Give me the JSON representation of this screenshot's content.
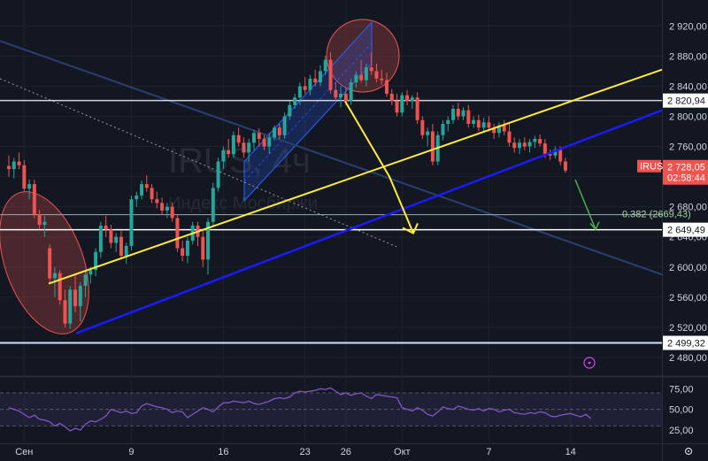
{
  "chart_data": [
    {
      "type": "candlestick",
      "title": "",
      "watermark": {
        "symbol": "IRUS, 4ч",
        "exchange": "Индекс Мосбиржи"
      },
      "ylim": [
        2460,
        2945
      ],
      "y_ticks": [
        "2 920,00",
        "2 880,00",
        "2 840,00",
        "2 800,00",
        "2 760,00",
        "2 720,00",
        "2 680,00",
        "2 640,00",
        "2 600,00",
        "2 560,00",
        "2 520,00",
        "2 480,00"
      ],
      "y_tick_values": [
        2920,
        2880,
        2840,
        2800,
        2760,
        2720,
        2680,
        2640,
        2600,
        2560,
        2520,
        2480
      ],
      "x_ticks": [
        "Сен",
        "9",
        "16",
        "23",
        "26",
        "Окт",
        "7",
        "14"
      ],
      "x_tick_bars": [
        3,
        24,
        42,
        58,
        66,
        77,
        94,
        110
      ],
      "bar_count": 115,
      "series": [
        {
          "values": [
            {
              "o": 2734,
              "h": 2748,
              "l": 2720,
              "c": 2730
            },
            {
              "o": 2730,
              "h": 2745,
              "l": 2718,
              "c": 2740
            },
            {
              "o": 2740,
              "h": 2752,
              "l": 2730,
              "c": 2735
            },
            {
              "o": 2735,
              "h": 2742,
              "l": 2700,
              "c": 2704
            },
            {
              "o": 2704,
              "h": 2716,
              "l": 2690,
              "c": 2710
            },
            {
              "o": 2710,
              "h": 2716,
              "l": 2665,
              "c": 2670
            },
            {
              "o": 2670,
              "h": 2676,
              "l": 2650,
              "c": 2656
            },
            {
              "o": 2656,
              "h": 2668,
              "l": 2640,
              "c": 2660
            },
            {
              "o": 2625,
              "h": 2630,
              "l": 2580,
              "c": 2585
            },
            {
              "o": 2585,
              "h": 2600,
              "l": 2560,
              "c": 2592
            },
            {
              "o": 2592,
              "h": 2596,
              "l": 2550,
              "c": 2556
            },
            {
              "o": 2556,
              "h": 2570,
              "l": 2520,
              "c": 2525
            },
            {
              "o": 2525,
              "h": 2575,
              "l": 2518,
              "c": 2570
            },
            {
              "o": 2570,
              "h": 2590,
              "l": 2540,
              "c": 2548
            },
            {
              "o": 2548,
              "h": 2580,
              "l": 2528,
              "c": 2575
            },
            {
              "o": 2575,
              "h": 2595,
              "l": 2560,
              "c": 2590
            },
            {
              "o": 2590,
              "h": 2600,
              "l": 2578,
              "c": 2596
            },
            {
              "o": 2596,
              "h": 2625,
              "l": 2588,
              "c": 2620
            },
            {
              "o": 2620,
              "h": 2660,
              "l": 2612,
              "c": 2655
            },
            {
              "o": 2655,
              "h": 2668,
              "l": 2640,
              "c": 2650
            },
            {
              "o": 2650,
              "h": 2656,
              "l": 2625,
              "c": 2632
            },
            {
              "o": 2632,
              "h": 2645,
              "l": 2620,
              "c": 2640
            },
            {
              "o": 2640,
              "h": 2648,
              "l": 2610,
              "c": 2615
            },
            {
              "o": 2615,
              "h": 2632,
              "l": 2604,
              "c": 2628
            },
            {
              "o": 2628,
              "h": 2695,
              "l": 2622,
              "c": 2690
            },
            {
              "o": 2690,
              "h": 2700,
              "l": 2680,
              "c": 2695
            },
            {
              "o": 2695,
              "h": 2715,
              "l": 2690,
              "c": 2710
            },
            {
              "o": 2710,
              "h": 2722,
              "l": 2700,
              "c": 2705
            },
            {
              "o": 2705,
              "h": 2710,
              "l": 2685,
              "c": 2690
            },
            {
              "o": 2690,
              "h": 2700,
              "l": 2678,
              "c": 2685
            },
            {
              "o": 2685,
              "h": 2692,
              "l": 2670,
              "c": 2675
            },
            {
              "o": 2675,
              "h": 2685,
              "l": 2665,
              "c": 2680
            },
            {
              "o": 2680,
              "h": 2686,
              "l": 2660,
              "c": 2665
            },
            {
              "o": 2665,
              "h": 2670,
              "l": 2620,
              "c": 2625
            },
            {
              "o": 2625,
              "h": 2635,
              "l": 2608,
              "c": 2615
            },
            {
              "o": 2615,
              "h": 2640,
              "l": 2605,
              "c": 2635
            },
            {
              "o": 2635,
              "h": 2660,
              "l": 2630,
              "c": 2655
            },
            {
              "o": 2655,
              "h": 2660,
              "l": 2628,
              "c": 2640
            },
            {
              "o": 2640,
              "h": 2650,
              "l": 2600,
              "c": 2610
            },
            {
              "o": 2610,
              "h": 2665,
              "l": 2590,
              "c": 2660
            },
            {
              "o": 2660,
              "h": 2712,
              "l": 2655,
              "c": 2705
            },
            {
              "o": 2705,
              "h": 2745,
              "l": 2700,
              "c": 2740
            },
            {
              "o": 2740,
              "h": 2760,
              "l": 2730,
              "c": 2755
            },
            {
              "o": 2755,
              "h": 2770,
              "l": 2745,
              "c": 2750
            },
            {
              "o": 2750,
              "h": 2780,
              "l": 2745,
              "c": 2775
            },
            {
              "o": 2775,
              "h": 2785,
              "l": 2760,
              "c": 2765
            },
            {
              "o": 2765,
              "h": 2772,
              "l": 2745,
              "c": 2752
            },
            {
              "o": 2752,
              "h": 2770,
              "l": 2740,
              "c": 2765
            },
            {
              "o": 2765,
              "h": 2782,
              "l": 2755,
              "c": 2778
            },
            {
              "o": 2778,
              "h": 2784,
              "l": 2760,
              "c": 2770
            },
            {
              "o": 2770,
              "h": 2775,
              "l": 2755,
              "c": 2760
            },
            {
              "o": 2760,
              "h": 2778,
              "l": 2750,
              "c": 2772
            },
            {
              "o": 2772,
              "h": 2788,
              "l": 2768,
              "c": 2785
            },
            {
              "o": 2785,
              "h": 2790,
              "l": 2770,
              "c": 2775
            },
            {
              "o": 2775,
              "h": 2805,
              "l": 2770,
              "c": 2800
            },
            {
              "o": 2800,
              "h": 2820,
              "l": 2795,
              "c": 2815
            },
            {
              "o": 2815,
              "h": 2830,
              "l": 2810,
              "c": 2825
            },
            {
              "o": 2825,
              "h": 2845,
              "l": 2815,
              "c": 2840
            },
            {
              "o": 2840,
              "h": 2852,
              "l": 2830,
              "c": 2835
            },
            {
              "o": 2835,
              "h": 2855,
              "l": 2828,
              "c": 2850
            },
            {
              "o": 2850,
              "h": 2862,
              "l": 2840,
              "c": 2845
            },
            {
              "o": 2845,
              "h": 2868,
              "l": 2840,
              "c": 2860
            },
            {
              "o": 2860,
              "h": 2880,
              "l": 2855,
              "c": 2875
            },
            {
              "o": 2875,
              "h": 2885,
              "l": 2830,
              "c": 2835
            },
            {
              "o": 2835,
              "h": 2845,
              "l": 2820,
              "c": 2825
            },
            {
              "o": 2825,
              "h": 2840,
              "l": 2812,
              "c": 2830
            },
            {
              "o": 2830,
              "h": 2838,
              "l": 2815,
              "c": 2820
            },
            {
              "o": 2820,
              "h": 2850,
              "l": 2815,
              "c": 2845
            },
            {
              "o": 2845,
              "h": 2860,
              "l": 2838,
              "c": 2855
            },
            {
              "o": 2855,
              "h": 2875,
              "l": 2845,
              "c": 2848
            },
            {
              "o": 2848,
              "h": 2870,
              "l": 2840,
              "c": 2865
            },
            {
              "o": 2865,
              "h": 2885,
              "l": 2855,
              "c": 2860
            },
            {
              "o": 2860,
              "h": 2870,
              "l": 2845,
              "c": 2850
            },
            {
              "o": 2850,
              "h": 2862,
              "l": 2842,
              "c": 2848
            },
            {
              "o": 2848,
              "h": 2858,
              "l": 2826,
              "c": 2830
            },
            {
              "o": 2830,
              "h": 2836,
              "l": 2815,
              "c": 2820
            },
            {
              "o": 2820,
              "h": 2830,
              "l": 2800,
              "c": 2805
            },
            {
              "o": 2805,
              "h": 2832,
              "l": 2800,
              "c": 2828
            },
            {
              "o": 2828,
              "h": 2835,
              "l": 2815,
              "c": 2820
            },
            {
              "o": 2820,
              "h": 2828,
              "l": 2810,
              "c": 2825
            },
            {
              "o": 2825,
              "h": 2832,
              "l": 2790,
              "c": 2795
            },
            {
              "o": 2795,
              "h": 2800,
              "l": 2770,
              "c": 2775
            },
            {
              "o": 2775,
              "h": 2785,
              "l": 2760,
              "c": 2780
            },
            {
              "o": 2780,
              "h": 2790,
              "l": 2735,
              "c": 2740
            },
            {
              "o": 2740,
              "h": 2780,
              "l": 2735,
              "c": 2775
            },
            {
              "o": 2775,
              "h": 2795,
              "l": 2768,
              "c": 2790
            },
            {
              "o": 2790,
              "h": 2800,
              "l": 2780,
              "c": 2795
            },
            {
              "o": 2795,
              "h": 2815,
              "l": 2790,
              "c": 2810
            },
            {
              "o": 2810,
              "h": 2818,
              "l": 2795,
              "c": 2800
            },
            {
              "o": 2800,
              "h": 2812,
              "l": 2795,
              "c": 2808
            },
            {
              "o": 2808,
              "h": 2815,
              "l": 2785,
              "c": 2790
            },
            {
              "o": 2790,
              "h": 2800,
              "l": 2785,
              "c": 2795
            },
            {
              "o": 2795,
              "h": 2802,
              "l": 2780,
              "c": 2785
            },
            {
              "o": 2785,
              "h": 2798,
              "l": 2780,
              "c": 2792
            },
            {
              "o": 2792,
              "h": 2800,
              "l": 2780,
              "c": 2785
            },
            {
              "o": 2785,
              "h": 2790,
              "l": 2770,
              "c": 2778
            },
            {
              "o": 2778,
              "h": 2792,
              "l": 2772,
              "c": 2788
            },
            {
              "o": 2788,
              "h": 2795,
              "l": 2775,
              "c": 2780
            },
            {
              "o": 2780,
              "h": 2790,
              "l": 2760,
              "c": 2765
            },
            {
              "o": 2765,
              "h": 2772,
              "l": 2752,
              "c": 2758
            },
            {
              "o": 2758,
              "h": 2770,
              "l": 2750,
              "c": 2765
            },
            {
              "o": 2765,
              "h": 2772,
              "l": 2755,
              "c": 2760
            },
            {
              "o": 2760,
              "h": 2770,
              "l": 2752,
              "c": 2766
            },
            {
              "o": 2766,
              "h": 2774,
              "l": 2758,
              "c": 2770
            },
            {
              "o": 2770,
              "h": 2776,
              "l": 2760,
              "c": 2764
            },
            {
              "o": 2764,
              "h": 2770,
              "l": 2745,
              "c": 2750
            },
            {
              "o": 2750,
              "h": 2756,
              "l": 2742,
              "c": 2748
            },
            {
              "o": 2748,
              "h": 2760,
              "l": 2744,
              "c": 2756
            },
            {
              "o": 2756,
              "h": 2760,
              "l": 2735,
              "c": 2740
            },
            {
              "o": 2740,
              "h": 2745,
              "l": 2725,
              "c": 2728
            }
          ]
        }
      ],
      "price_tags": [
        {
          "label": "2 820,94",
          "value": 2820.94
        },
        {
          "label": "2 649,49",
          "value": 2649.49
        },
        {
          "label": "2 499,32",
          "value": 2499.32
        }
      ],
      "current_price": {
        "symbol": "IRUS",
        "price": "2 728,05",
        "countdown": "02:58:44",
        "value": 2728.05
      },
      "fib_label": {
        "text": "0.382 (2669,43)",
        "value": 2669.43
      },
      "horizontal_levels": [
        2820.94,
        2669.43,
        2649.49,
        2499.32
      ],
      "colors": {
        "up": "#26a69a",
        "down": "#ef5350",
        "background": "#131722",
        "yellow": "#ffeb3b",
        "blue": "#1a1aff",
        "channel": "#2962ff",
        "green": "#4caf50",
        "rsi": "#7e57c2"
      }
    },
    {
      "type": "line",
      "title": "",
      "ylim": [
        10,
        85
      ],
      "y_ticks": [
        "75,00",
        "50,00",
        "25,00"
      ],
      "y_tick_values": [
        75,
        50,
        25
      ],
      "bands": [
        70,
        30
      ],
      "series": [
        {
          "values": [
            52,
            50,
            48,
            44,
            40,
            43,
            38,
            37,
            35,
            30,
            33,
            29,
            24,
            27,
            25,
            32,
            36,
            35,
            38,
            42,
            50,
            48,
            46,
            48,
            45,
            46,
            54,
            57,
            55,
            53,
            52,
            50,
            46,
            48,
            47,
            40,
            44,
            48,
            52,
            50,
            47,
            53,
            58,
            58,
            60,
            59,
            58,
            60,
            57,
            56,
            58,
            60,
            63,
            64,
            63,
            65,
            70,
            72,
            71,
            72,
            73,
            75,
            74,
            76,
            72,
            68,
            70,
            67,
            69,
            70,
            66,
            63,
            68,
            67,
            66,
            65,
            64,
            52,
            50,
            48,
            52,
            49,
            44,
            42,
            47,
            53,
            51,
            50,
            54,
            52,
            50,
            49,
            51,
            48,
            51,
            50,
            47,
            49,
            50,
            46,
            45,
            44,
            46,
            45,
            47,
            46,
            42,
            41,
            43,
            44,
            45,
            43,
            41,
            44,
            39
          ]
        }
      ]
    }
  ],
  "alert_icon": "lightning-icon",
  "settings_icon": "gear-icon"
}
